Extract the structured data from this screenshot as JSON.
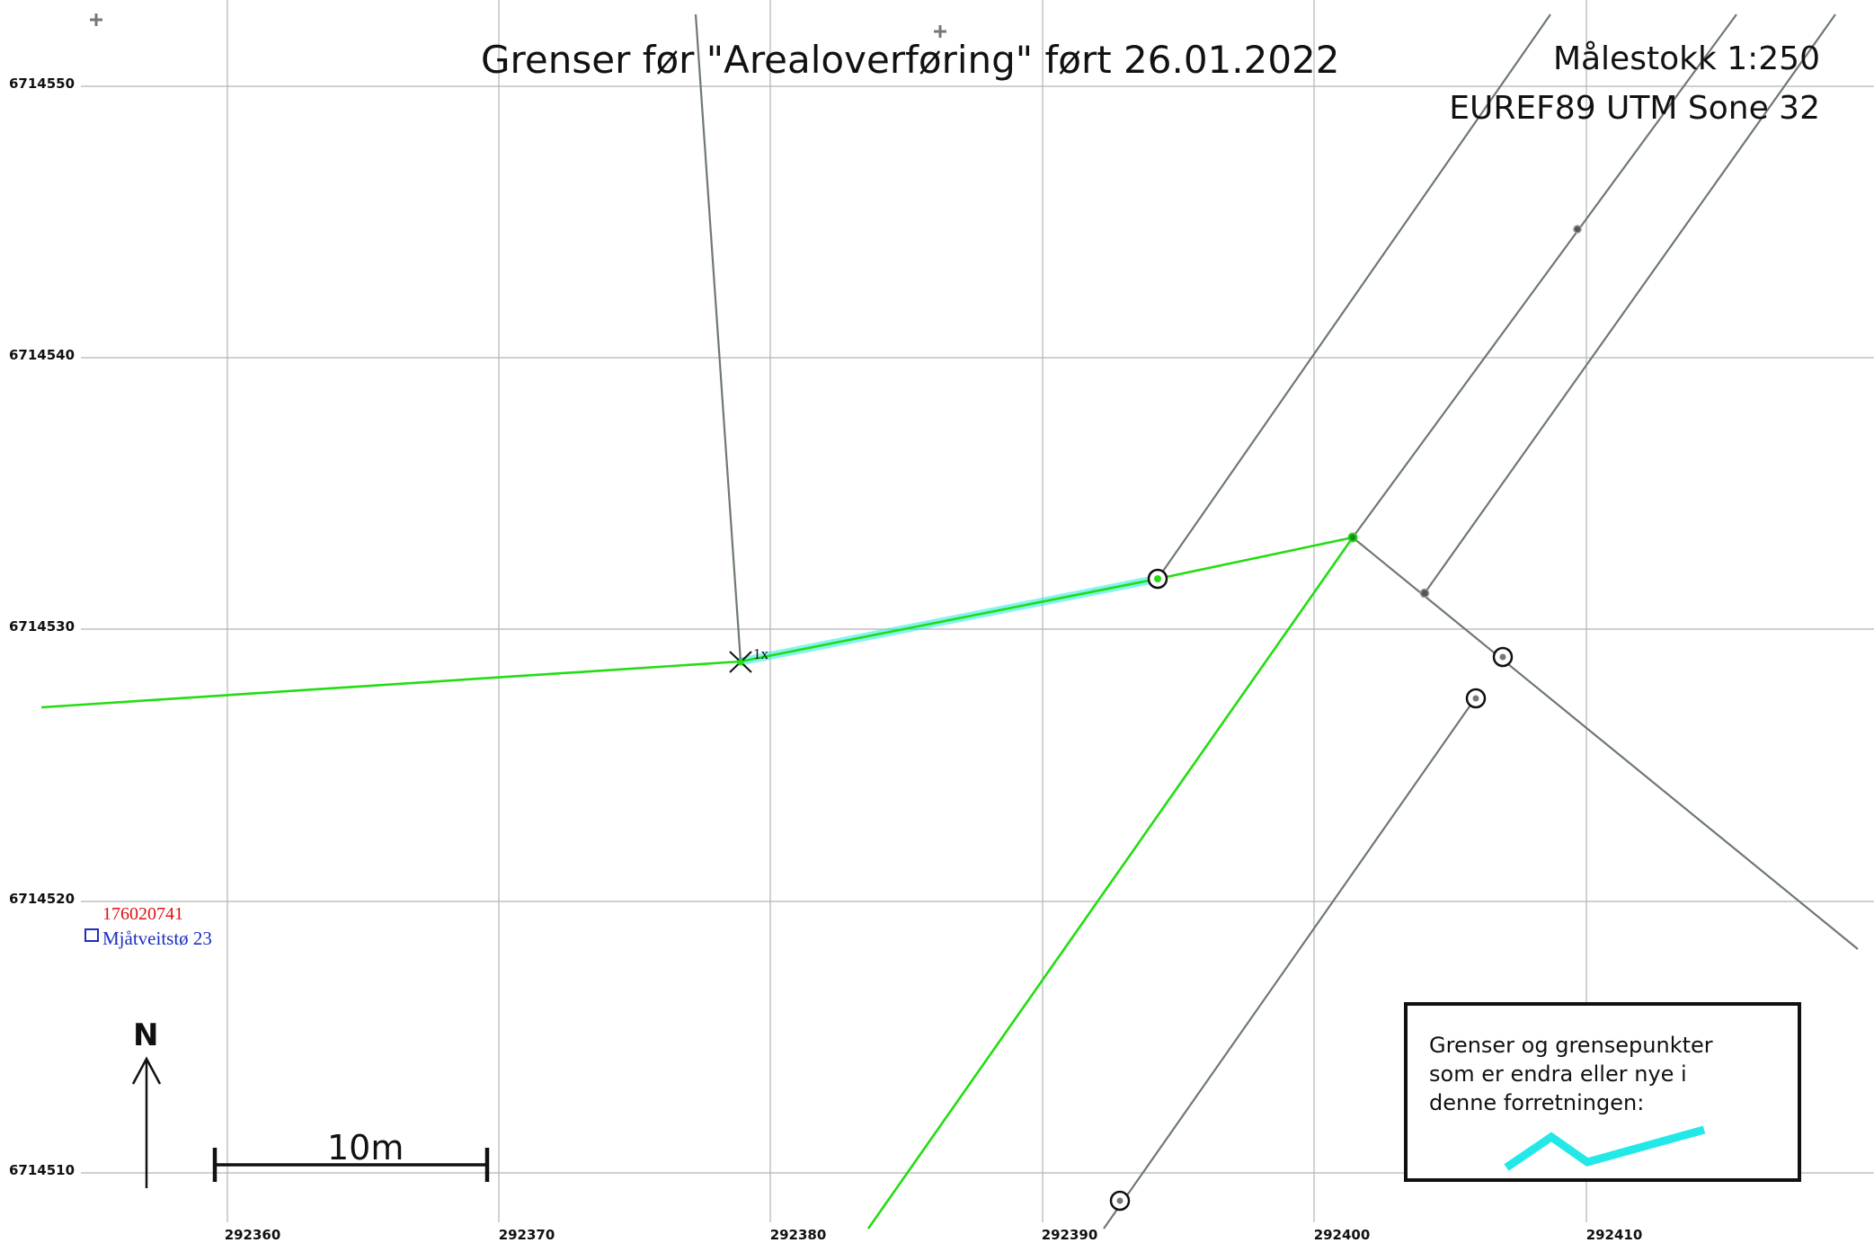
{
  "header": {
    "title": "Grenser før \"Arealoverføring\" ført 26.01.2022",
    "scale": "Målestokk 1:250",
    "crs": "EUREF89 UTM Sone 32"
  },
  "grid": {
    "northings": [
      "6714550",
      "6714540",
      "6714530",
      "6714520",
      "6714510"
    ],
    "eastings": [
      "292360",
      "292370",
      "292380",
      "292390",
      "292400",
      "292410"
    ]
  },
  "property": {
    "id": "176020741",
    "address": "Mjåtveitstø 23"
  },
  "point_label": "1x",
  "north_arrow": {
    "label": "N"
  },
  "scalebar": {
    "label": "10m"
  },
  "legend": {
    "text": "Grenser og grensepunkter\nsom er endra eller nye i\ndenne forretningen:"
  },
  "colors": {
    "grid": "#b4b4b4",
    "existing_boundary": "#6e7a6e",
    "boundary_before": "#22dd11",
    "changed_boundary": "#22e8e8",
    "property_id": "#dd1111",
    "address": "#1a2fbf"
  }
}
